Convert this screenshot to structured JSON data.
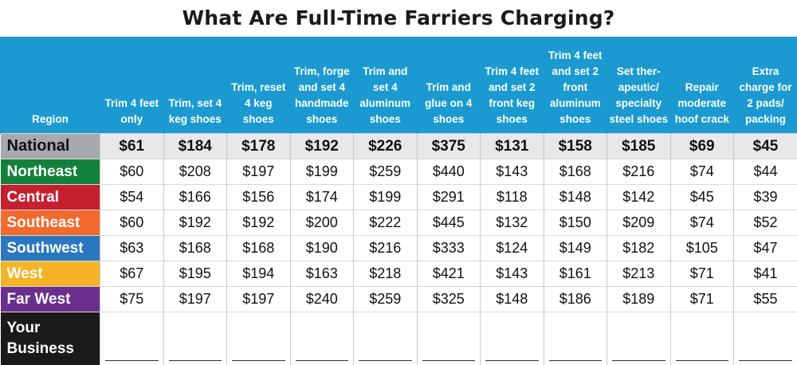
{
  "chart_data": {
    "type": "table",
    "title": "What Are Full-Time Farriers Charging?",
    "columns": [
      "Region",
      "Trim 4 feet only",
      "Trim, set 4 keg shoes",
      "Trim, reset 4 keg shoes",
      "Trim, forge and set 4 handmade shoes",
      "Trim and set 4 aluminum shoes",
      "Trim and glue on 4 shoes",
      "Trim 4 feet and set 2 front keg shoes",
      "Trim 4 feet and set 2 front aluminum shoes",
      "Set ther-apeutic/ specialty steel shoes",
      "Repair moderate hoof crack",
      "Extra charge for 2 pads/ packing"
    ],
    "rows": [
      {
        "region": "National",
        "color": "#a7a9ac",
        "values": [
          "$61",
          "$184",
          "$178",
          "$192",
          "$226",
          "$375",
          "$131",
          "$158",
          "$185",
          "$69",
          "$45"
        ]
      },
      {
        "region": "Northeast",
        "color": "#13813b",
        "values": [
          "$60",
          "$208",
          "$197",
          "$199",
          "$259",
          "$440",
          "$143",
          "$168",
          "$216",
          "$74",
          "$44"
        ]
      },
      {
        "region": "Central",
        "color": "#c4202f",
        "values": [
          "$54",
          "$166",
          "$156",
          "$174",
          "$199",
          "$291",
          "$118",
          "$148",
          "$142",
          "$45",
          "$39"
        ]
      },
      {
        "region": "Southeast",
        "color": "#f26a2e",
        "values": [
          "$60",
          "$192",
          "$192",
          "$200",
          "$222",
          "$445",
          "$132",
          "$150",
          "$209",
          "$74",
          "$52"
        ]
      },
      {
        "region": "Southwest",
        "color": "#2a77bf",
        "values": [
          "$63",
          "$168",
          "$168",
          "$190",
          "$216",
          "$333",
          "$124",
          "$149",
          "$182",
          "$105",
          "$47"
        ]
      },
      {
        "region": "West",
        "color": "#f5b428",
        "values": [
          "$67",
          "$195",
          "$194",
          "$163",
          "$218",
          "$421",
          "$143",
          "$161",
          "$213",
          "$71",
          "$41"
        ]
      },
      {
        "region": "Far West",
        "color": "#6a2e8c",
        "values": [
          "$75",
          "$197",
          "$197",
          "$240",
          "$259",
          "$325",
          "$148",
          "$186",
          "$189",
          "$71",
          "$55"
        ]
      }
    ],
    "blank_row": {
      "region": "Your Business",
      "color": "#1a1a1a"
    }
  }
}
